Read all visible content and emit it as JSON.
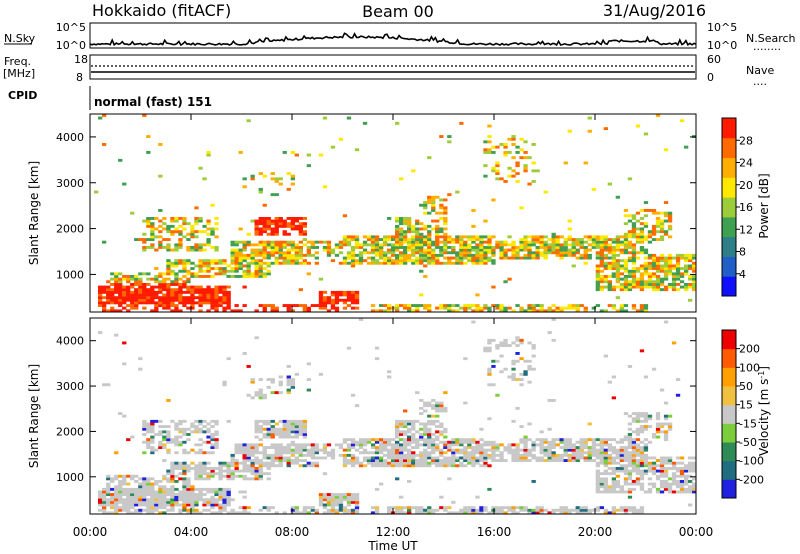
{
  "header": {
    "title_left": "Hokkaido (fitACF)",
    "title_center": "Beam 00",
    "title_right": "31/Aug/2016"
  },
  "status": {
    "nsky_label": "N.Sky",
    "nsearch_label": "N.Search",
    "nsearch_dots": "........",
    "freq_label": "Freq.",
    "freq_unit": "[MHz]",
    "nave_label": "Nave",
    "nave_dots": "....",
    "cpid_label": "CPID",
    "cpid_value": "normal (fast) 151",
    "noise_ticks_left": [
      "10^5",
      "10^0"
    ],
    "noise_ticks_right": [
      "10^5",
      "10^0"
    ],
    "freq_ticks": [
      "18",
      "8"
    ],
    "nave_ticks": [
      "60",
      "0"
    ]
  },
  "colorbars": {
    "power": {
      "label": "Power [dB]",
      "tick_labels": [
        "28",
        "24",
        "20",
        "16",
        "12",
        "8",
        "4"
      ],
      "colors": [
        "#1010ff",
        "#205fc8",
        "#2e7f87",
        "#3ea050",
        "#9dcc3a",
        "#ffe800",
        "#ffae00",
        "#ff6a00",
        "#ff1a00"
      ]
    },
    "velocity": {
      "label": "Velocity [m s",
      "label_sup": "-1",
      "label_end": "]",
      "tick_labels": [
        "200",
        "100",
        "50",
        "15",
        "-15",
        "-50",
        "-100",
        "-200"
      ],
      "colors": [
        "#2020e0",
        "#1f6d7f",
        "#2e8b57",
        "#7ccd3c",
        "#c8c8c8",
        "#f0c040",
        "#ff9f00",
        "#ff5a00",
        "#ee0000"
      ]
    }
  },
  "chart_data": [
    {
      "type": "heatmap",
      "name": "power",
      "ylabel": "Slant Range [km]",
      "xlabel": "Time UT",
      "x_tick_labels": [
        "00:00",
        "04:00",
        "08:00",
        "12:00",
        "16:00",
        "20:00",
        "00:00"
      ],
      "xlim_hours": [
        0,
        24
      ],
      "y_tick_labels": [
        "1000",
        "2000",
        "3000",
        "4000"
      ],
      "ylim": [
        180,
        4500
      ],
      "legend_position": "right colorbar"
    },
    {
      "type": "heatmap",
      "name": "velocity",
      "ylabel": "Slant Range [km]",
      "xlabel": "Time UT",
      "x_tick_labels": [
        "00:00",
        "04:00",
        "08:00",
        "12:00",
        "16:00",
        "20:00",
        "00:00"
      ],
      "xlim_hours": [
        0,
        24
      ],
      "y_tick_labels": [
        "1000",
        "2000",
        "3000",
        "4000"
      ],
      "ylim": [
        180,
        4500
      ],
      "legend_position": "right colorbar"
    }
  ]
}
